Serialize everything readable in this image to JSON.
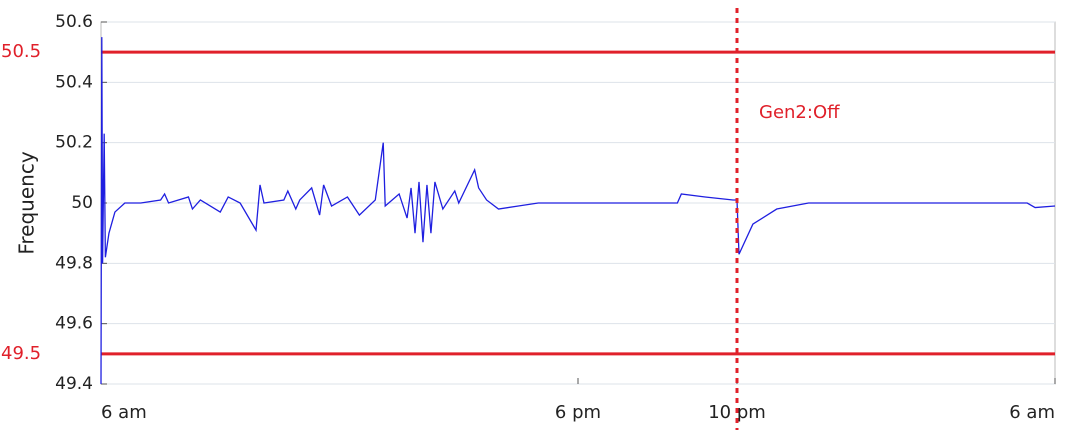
{
  "chart_data": {
    "type": "line",
    "y_label": "Frequency",
    "x": [
      0,
      0.02,
      0.04,
      0.08,
      0.11,
      0.2,
      0.35,
      0.6,
      1.0,
      1.5,
      1.6,
      1.7,
      2.2,
      2.3,
      2.5,
      3.0,
      3.2,
      3.5,
      3.9,
      4.0,
      4.1,
      4.6,
      4.7,
      4.9,
      5.0,
      5.3,
      5.5,
      5.6,
      5.8,
      6.2,
      6.5,
      6.9,
      7.1,
      7.15,
      7.5,
      7.7,
      7.8,
      7.9,
      8.0,
      8.1,
      8.2,
      8.3,
      8.4,
      8.6,
      8.9,
      9.0,
      9.4,
      9.5,
      9.7,
      10.0,
      10.5,
      11.0,
      13.0,
      14.5,
      14.6,
      15.2,
      15.9,
      16.0,
      16.05,
      16.4,
      17.0,
      17.8,
      20.0,
      22.0,
      23.3,
      23.5,
      24.0
    ],
    "series": [
      {
        "name": "Frequency",
        "color": "#1f1fe0",
        "values": [
          49.4,
          50.55,
          49.8,
          50.23,
          49.82,
          49.9,
          49.97,
          50.0,
          50.0,
          50.01,
          50.03,
          50.0,
          50.02,
          49.98,
          50.01,
          49.97,
          50.02,
          50.0,
          49.91,
          50.06,
          50.0,
          50.01,
          50.04,
          49.98,
          50.01,
          50.05,
          49.96,
          50.06,
          49.99,
          50.02,
          49.96,
          50.01,
          50.2,
          49.99,
          50.03,
          49.95,
          50.05,
          49.9,
          50.07,
          49.87,
          50.06,
          49.9,
          50.07,
          49.98,
          50.04,
          50.0,
          50.11,
          50.05,
          50.01,
          49.98,
          49.99,
          50.0,
          50.0,
          50.0,
          50.03,
          50.02,
          50.01,
          50.01,
          49.83,
          49.93,
          49.98,
          50.0,
          50.0,
          50.0,
          50.0,
          49.985,
          49.99
        ]
      }
    ],
    "xlim": [
      0,
      24
    ],
    "xticks": [
      {
        "value": 0,
        "label": "6 am"
      },
      {
        "value": 12,
        "label": "6 pm"
      },
      {
        "value": 16,
        "label": "10 pm"
      },
      {
        "value": 24,
        "label": "6 am"
      }
    ],
    "ylim": [
      49.4,
      50.6
    ],
    "yticks": [
      49.4,
      49.6,
      49.8,
      50,
      50.2,
      50.4,
      50.6
    ],
    "grid": true,
    "hlines": [
      50.5,
      49.5
    ],
    "hline_color": "#e0202a",
    "vline": {
      "x": 16,
      "label": "Gen2:Off",
      "color": "#e0202a"
    }
  }
}
